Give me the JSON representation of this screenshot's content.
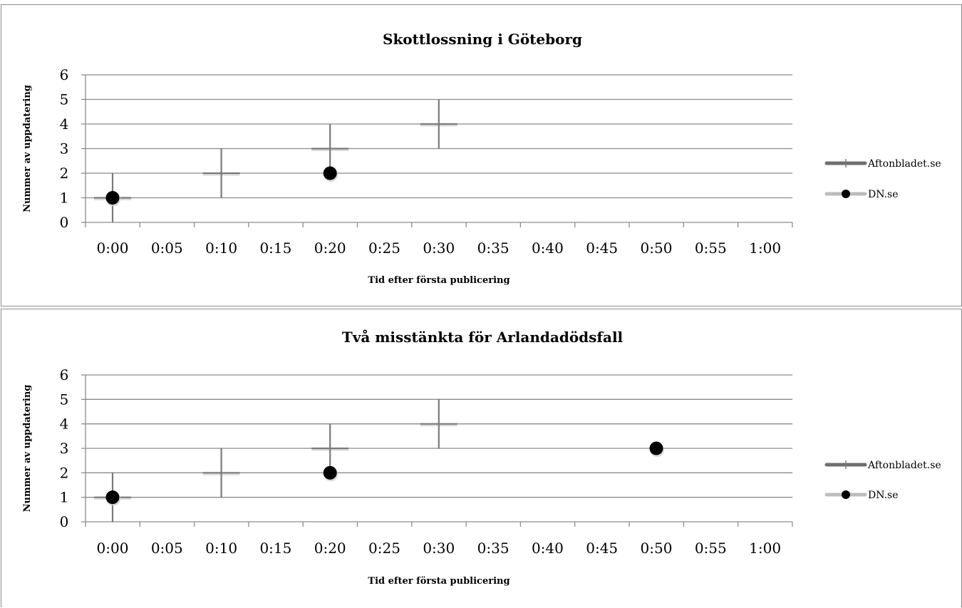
{
  "chart_data": [
    {
      "type": "scatter",
      "title": "Skottlossning i Göteborg",
      "xlabel": "Tid efter första publicering",
      "ylabel": "Nummer av uppdatering",
      "categories": [
        "0:00",
        "0:05",
        "0:10",
        "0:15",
        "0:20",
        "0:25",
        "0:30",
        "0:35",
        "0:40",
        "0:45",
        "0:50",
        "0:55",
        "1:00"
      ],
      "y_ticks": [
        "0",
        "1",
        "2",
        "3",
        "4",
        "5",
        "6"
      ],
      "ylim": [
        0,
        6
      ],
      "grid": true,
      "legend_position": "right",
      "series": [
        {
          "name": "Aftonbladet.se",
          "marker": "cross",
          "color": "#7a7a7a",
          "line_color": "#6f6f6f",
          "points": [
            {
              "x": 0,
              "y": 1
            },
            {
              "x": 10,
              "y": 2
            },
            {
              "x": 20,
              "y": 3
            },
            {
              "x": 30,
              "y": 4
            }
          ]
        },
        {
          "name": "DN.se",
          "marker": "circle",
          "color": "#000000",
          "line_color": "#bdbdbd",
          "points": [
            {
              "x": 0,
              "y": 1
            },
            {
              "x": 20,
              "y": 2
            }
          ]
        }
      ]
    },
    {
      "type": "scatter",
      "title": "Två misstänkta för Arlandadödsfall",
      "xlabel": "Tid efter första publicering",
      "ylabel": "Nummer av uppdatering",
      "categories": [
        "0:00",
        "0:05",
        "0:10",
        "0:15",
        "0:20",
        "0:25",
        "0:30",
        "0:35",
        "0:40",
        "0:45",
        "0:50",
        "0:55",
        "1:00"
      ],
      "y_ticks": [
        "0",
        "1",
        "2",
        "3",
        "4",
        "5",
        "6"
      ],
      "ylim": [
        0,
        6
      ],
      "grid": true,
      "legend_position": "right",
      "series": [
        {
          "name": "Aftonbladet.se",
          "marker": "cross",
          "color": "#7a7a7a",
          "line_color": "#6f6f6f",
          "points": [
            {
              "x": 0,
              "y": 1
            },
            {
              "x": 10,
              "y": 2
            },
            {
              "x": 20,
              "y": 3
            },
            {
              "x": 30,
              "y": 4
            }
          ]
        },
        {
          "name": "DN.se",
          "marker": "circle",
          "color": "#000000",
          "line_color": "#bdbdbd",
          "points": [
            {
              "x": 0,
              "y": 1
            },
            {
              "x": 20,
              "y": 2
            },
            {
              "x": 50,
              "y": 3
            }
          ]
        }
      ]
    }
  ]
}
